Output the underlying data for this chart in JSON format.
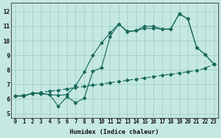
{
  "xlabel": "Humidex (Indice chaleur)",
  "bg_color": "#c5e8e2",
  "grid_color": "#9ecfc8",
  "line_color": "#1a6b5a",
  "xlim": [
    -0.5,
    23.5
  ],
  "ylim": [
    4.7,
    12.6
  ],
  "xticks": [
    0,
    1,
    2,
    3,
    4,
    5,
    6,
    7,
    8,
    9,
    10,
    11,
    12,
    13,
    14,
    15,
    16,
    17,
    18,
    19,
    20,
    21,
    22,
    23
  ],
  "yticks": [
    5,
    6,
    7,
    8,
    9,
    10,
    11,
    12
  ],
  "line1_x": [
    0,
    1,
    2,
    3,
    4,
    5,
    6,
    7,
    8,
    9,
    10,
    11,
    12,
    13,
    14,
    15,
    16,
    17,
    18,
    19,
    20,
    21,
    22,
    23
  ],
  "line1_y": [
    6.2,
    6.2,
    6.4,
    6.4,
    6.3,
    5.5,
    6.15,
    5.75,
    6.05,
    7.9,
    8.15,
    10.3,
    11.15,
    10.6,
    10.7,
    11.0,
    11.0,
    10.8,
    10.8,
    11.85,
    11.5,
    9.55,
    9.05,
    8.4
  ],
  "line2_x": [
    0,
    1,
    2,
    3,
    4,
    5,
    6,
    7,
    8,
    9,
    10,
    11,
    12,
    13,
    14,
    15,
    16,
    17,
    18,
    19,
    20,
    21,
    22,
    23
  ],
  "line2_y": [
    6.2,
    6.2,
    6.4,
    6.35,
    6.3,
    6.25,
    6.3,
    6.9,
    7.85,
    9.0,
    9.85,
    10.55,
    11.15,
    10.65,
    10.7,
    10.85,
    10.85,
    10.8,
    10.8,
    11.85,
    11.5,
    9.55,
    9.05,
    8.4
  ],
  "line3_x": [
    0,
    1,
    2,
    3,
    4,
    5,
    6,
    7,
    8,
    9,
    10,
    11,
    12,
    13,
    14,
    15,
    16,
    17,
    18,
    19,
    20,
    21,
    22,
    23
  ],
  "line3_y": [
    6.2,
    6.28,
    6.37,
    6.45,
    6.53,
    6.61,
    6.7,
    6.78,
    6.87,
    6.95,
    7.03,
    7.12,
    7.2,
    7.28,
    7.37,
    7.45,
    7.53,
    7.62,
    7.7,
    7.78,
    7.87,
    7.95,
    8.12,
    8.4
  ],
  "marker_size": 2.2,
  "linewidth": 0.9,
  "tick_fontsize": 5.5,
  "xlabel_fontsize": 6.5
}
